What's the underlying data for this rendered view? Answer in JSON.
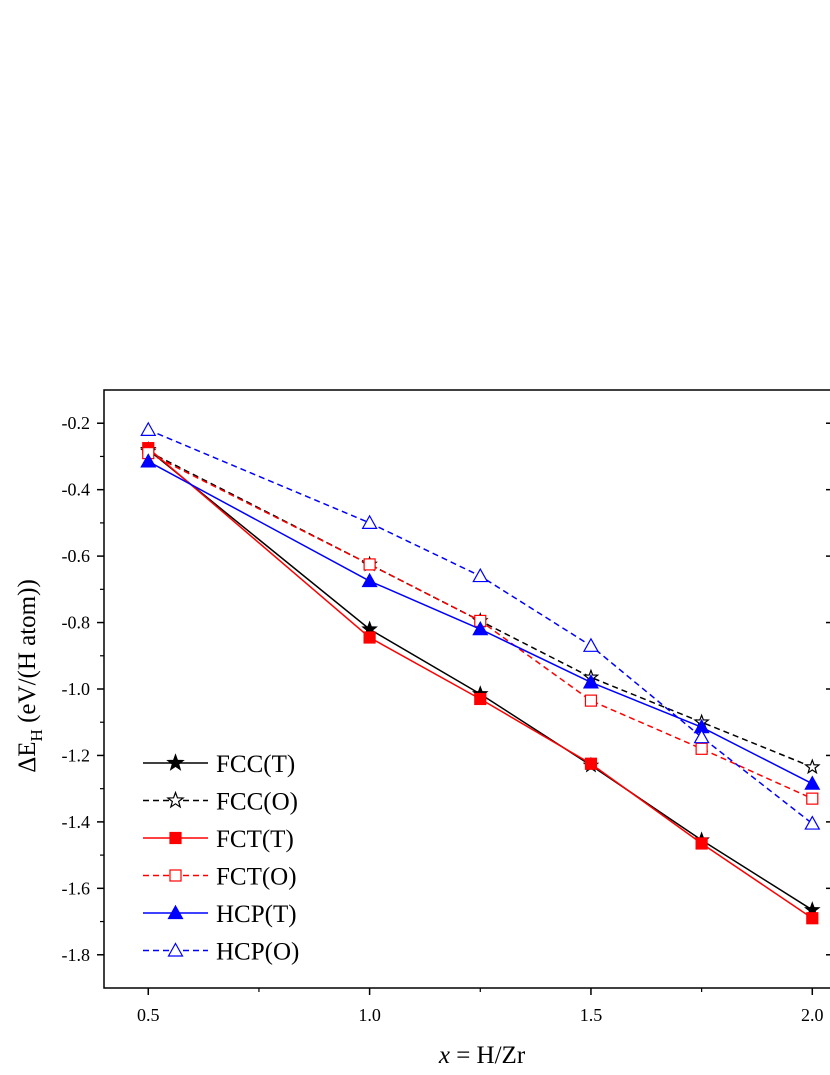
{
  "chart_data": {
    "type": "line",
    "xlabel_var": "x",
    "xlabel_rest": " = H/Zr",
    "ylabel_main": "ΔE",
    "ylabel_sub": "H",
    "ylabel_rest": " (eV/(H atom))",
    "xlim": [
      0.4,
      2.04
    ],
    "ylim": [
      -1.9,
      -0.1
    ],
    "xticks": [
      0.5,
      1.0,
      1.5,
      2.0
    ],
    "xtick_labels": [
      "0.5",
      "1.0",
      "1.5",
      "2.0"
    ],
    "yticks": [
      -0.2,
      -0.4,
      -0.6,
      -0.8,
      -1.0,
      -1.2,
      -1.4,
      -1.6,
      -1.8
    ],
    "ytick_labels": [
      "-0.2",
      "-0.4",
      "-0.6",
      "-0.8",
      "-1.0",
      "-1.2",
      "-1.4",
      "-1.6",
      "-1.8"
    ],
    "grid": false,
    "legend_position": "bottom-left",
    "x": [
      0.5,
      1.0,
      1.25,
      1.5,
      1.75,
      2.0
    ],
    "series": [
      {
        "name": "FCC(T)",
        "values": [
          -0.28,
          -0.82,
          -1.015,
          -1.23,
          -1.455,
          -1.665
        ],
        "color": "#000000",
        "dashed": false,
        "marker": "star",
        "filled": true
      },
      {
        "name": "FCC(O)",
        "values": [
          -0.285,
          -0.625,
          -0.795,
          -0.965,
          -1.1,
          -1.235
        ],
        "color": "#000000",
        "dashed": true,
        "marker": "star",
        "filled": false
      },
      {
        "name": "FCT(T)",
        "values": [
          -0.275,
          -0.845,
          -1.03,
          -1.225,
          -1.465,
          -1.69
        ],
        "color": "#ff0000",
        "dashed": false,
        "marker": "square",
        "filled": true
      },
      {
        "name": "FCT(O)",
        "values": [
          -0.29,
          -0.625,
          -0.795,
          -1.035,
          -1.18,
          -1.33
        ],
        "color": "#ff0000",
        "dashed": true,
        "marker": "square",
        "filled": false
      },
      {
        "name": "HCP(T)",
        "values": [
          -0.315,
          -0.675,
          -0.82,
          -0.98,
          -1.115,
          -1.285
        ],
        "color": "#0000ff",
        "dashed": false,
        "marker": "triangle",
        "filled": true
      },
      {
        "name": "HCP(O)",
        "values": [
          -0.22,
          -0.5,
          -0.66,
          -0.87,
          -1.145,
          -1.405
        ],
        "color": "#0000ff",
        "dashed": true,
        "marker": "triangle",
        "filled": false
      }
    ]
  }
}
